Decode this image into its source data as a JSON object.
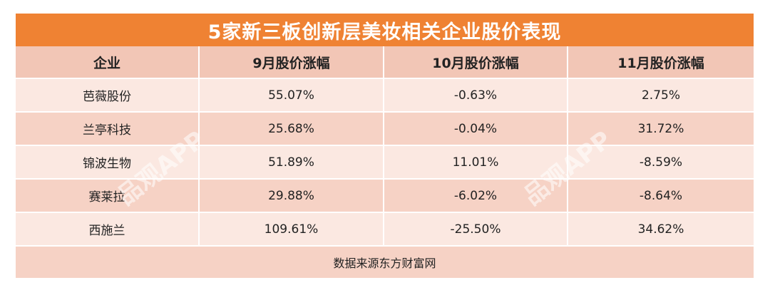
{
  "title": "5家新三板创新层美妆相关企业股价表现",
  "columns": [
    "企业",
    "9月股价涨幅",
    "10月股价涨幅",
    "11月股价涨幅"
  ],
  "rows": [
    [
      "芭薇股份",
      "55.07%",
      "-0.63%",
      "2.75%"
    ],
    [
      "兰亭科技",
      "25.68%",
      "-0.04%",
      "31.72%"
    ],
    [
      "锦波生物",
      "51.89%",
      "11.01%",
      "-8.59%"
    ],
    [
      "赛莱拉",
      "29.88%",
      "-6.02%",
      "-8.64%"
    ],
    [
      "西施兰",
      "109.61%",
      "-25.50%",
      "34.62%"
    ]
  ],
  "footer": "数据来源东方财富网",
  "watermark": "品观APP",
  "colors": {
    "title_bg": "#ef8233",
    "header_bg": "#f2c6b6",
    "row_light": "#fbe8e1",
    "row_dark": "#f6d2c5"
  }
}
